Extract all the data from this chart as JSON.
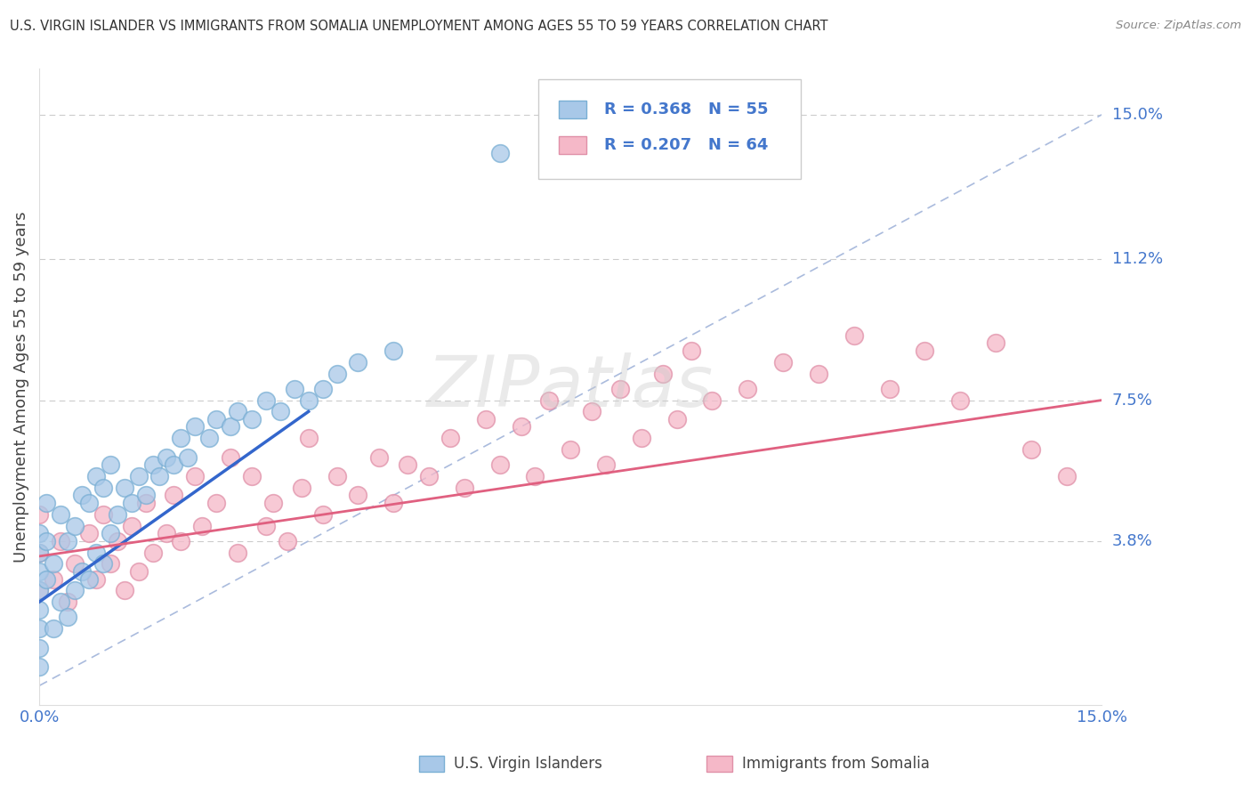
{
  "title": "U.S. VIRGIN ISLANDER VS IMMIGRANTS FROM SOMALIA UNEMPLOYMENT AMONG AGES 55 TO 59 YEARS CORRELATION CHART",
  "source": "Source: ZipAtlas.com",
  "ylabel": "Unemployment Among Ages 55 to 59 years",
  "xlim": [
    0.0,
    0.15
  ],
  "ylim": [
    -0.005,
    0.162
  ],
  "xticklabels": [
    "0.0%",
    "15.0%"
  ],
  "ytick_positions": [
    0.038,
    0.075,
    0.112,
    0.15
  ],
  "ytick_labels": [
    "3.8%",
    "7.5%",
    "11.2%",
    "15.0%"
  ],
  "series1_color": "#A8C8E8",
  "series1_edge": "#7AAFD4",
  "series1_label": "U.S. Virgin Islanders",
  "series1_R": "0.368",
  "series1_N": "55",
  "series2_color": "#F5B8C8",
  "series2_edge": "#E090A8",
  "series2_label": "Immigrants from Somalia",
  "series2_R": "0.207",
  "series2_N": "64",
  "line1_color": "#3366CC",
  "line1_x0": 0.0,
  "line1_x1": 0.038,
  "line1_y0": 0.022,
  "line1_y1": 0.072,
  "line2_color": "#E06080",
  "line2_x0": 0.0,
  "line2_x1": 0.15,
  "line2_y0": 0.034,
  "line2_y1": 0.075,
  "diag_color": "#AABBDD",
  "watermark": "ZIPatlas",
  "watermark_color": "#CCCCCC",
  "bg_color": "#FFFFFF",
  "grid_color": "#CCCCCC",
  "title_color": "#333333",
  "axis_label_color": "#444444",
  "tick_label_color": "#4477CC",
  "legend_color": "#4477CC",
  "series1_x": [
    0.0,
    0.0,
    0.0,
    0.0,
    0.0,
    0.0,
    0.0,
    0.0,
    0.001,
    0.001,
    0.001,
    0.002,
    0.002,
    0.003,
    0.003,
    0.004,
    0.004,
    0.005,
    0.005,
    0.006,
    0.006,
    0.007,
    0.007,
    0.008,
    0.008,
    0.009,
    0.009,
    0.01,
    0.01,
    0.011,
    0.012,
    0.013,
    0.014,
    0.015,
    0.016,
    0.017,
    0.018,
    0.019,
    0.02,
    0.021,
    0.022,
    0.024,
    0.025,
    0.027,
    0.028,
    0.03,
    0.032,
    0.034,
    0.036,
    0.038,
    0.04,
    0.042,
    0.045,
    0.05,
    0.065
  ],
  "series1_y": [
    0.01,
    0.015,
    0.02,
    0.025,
    0.03,
    0.035,
    0.04,
    0.005,
    0.028,
    0.038,
    0.048,
    0.015,
    0.032,
    0.022,
    0.045,
    0.018,
    0.038,
    0.025,
    0.042,
    0.03,
    0.05,
    0.028,
    0.048,
    0.035,
    0.055,
    0.032,
    0.052,
    0.04,
    0.058,
    0.045,
    0.052,
    0.048,
    0.055,
    0.05,
    0.058,
    0.055,
    0.06,
    0.058,
    0.065,
    0.06,
    0.068,
    0.065,
    0.07,
    0.068,
    0.072,
    0.07,
    0.075,
    0.072,
    0.078,
    0.075,
    0.078,
    0.082,
    0.085,
    0.088,
    0.14
  ],
  "series2_x": [
    0.0,
    0.0,
    0.0,
    0.002,
    0.003,
    0.004,
    0.005,
    0.007,
    0.008,
    0.009,
    0.01,
    0.011,
    0.012,
    0.013,
    0.014,
    0.015,
    0.016,
    0.018,
    0.019,
    0.02,
    0.022,
    0.023,
    0.025,
    0.027,
    0.028,
    0.03,
    0.032,
    0.033,
    0.035,
    0.037,
    0.038,
    0.04,
    0.042,
    0.045,
    0.048,
    0.05,
    0.052,
    0.055,
    0.058,
    0.06,
    0.063,
    0.065,
    0.068,
    0.07,
    0.072,
    0.075,
    0.078,
    0.08,
    0.082,
    0.085,
    0.088,
    0.09,
    0.092,
    0.095,
    0.1,
    0.105,
    0.11,
    0.115,
    0.12,
    0.125,
    0.13,
    0.135,
    0.14,
    0.145
  ],
  "series2_y": [
    0.035,
    0.045,
    0.025,
    0.028,
    0.038,
    0.022,
    0.032,
    0.04,
    0.028,
    0.045,
    0.032,
    0.038,
    0.025,
    0.042,
    0.03,
    0.048,
    0.035,
    0.04,
    0.05,
    0.038,
    0.055,
    0.042,
    0.048,
    0.06,
    0.035,
    0.055,
    0.042,
    0.048,
    0.038,
    0.052,
    0.065,
    0.045,
    0.055,
    0.05,
    0.06,
    0.048,
    0.058,
    0.055,
    0.065,
    0.052,
    0.07,
    0.058,
    0.068,
    0.055,
    0.075,
    0.062,
    0.072,
    0.058,
    0.078,
    0.065,
    0.082,
    0.07,
    0.088,
    0.075,
    0.078,
    0.085,
    0.082,
    0.092,
    0.078,
    0.088,
    0.075,
    0.09,
    0.062,
    0.055
  ]
}
